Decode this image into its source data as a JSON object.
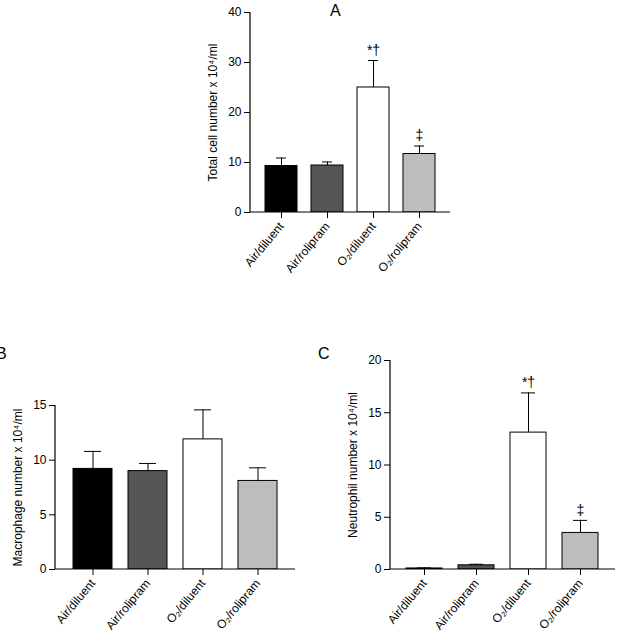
{
  "chart_data": [
    {
      "type": "bar",
      "title": "A",
      "categories": [
        "Air/diluent",
        "Air/rolipram",
        "O₂/diluent",
        "O₂/rolipram"
      ],
      "values": [
        9.3,
        9.4,
        25.0,
        11.7
      ],
      "errors": [
        1.6,
        0.7,
        5.4,
        1.6
      ],
      "annotations": [
        null,
        null,
        "*†",
        "‡"
      ],
      "colors": [
        "#000000",
        "#555555",
        "#ffffff",
        "#bdbdbd"
      ],
      "y_label": "Total cell number x 10⁴/ml",
      "ylim": [
        0,
        40
      ],
      "yticks": [
        0,
        10,
        20,
        30,
        40
      ],
      "grid": false
    },
    {
      "type": "bar",
      "title": "B",
      "categories": [
        "Air/diluent",
        "Air/rolipram",
        "O₂/diluent",
        "O₂/rolipram"
      ],
      "values": [
        9.2,
        9.0,
        11.9,
        8.1
      ],
      "errors": [
        1.6,
        0.7,
        2.7,
        1.2
      ],
      "annotations": [
        null,
        null,
        null,
        null
      ],
      "colors": [
        "#000000",
        "#555555",
        "#ffffff",
        "#bdbdbd"
      ],
      "y_label": "Macrophage number x 10⁴/ml",
      "ylim": [
        0,
        15
      ],
      "yticks": [
        0,
        5,
        10,
        15
      ],
      "grid": false
    },
    {
      "type": "bar",
      "title": "C",
      "categories": [
        "Air/diluent",
        "Air/rolipram",
        "O₂/diluent",
        "O₂/rolipram"
      ],
      "values": [
        0.1,
        0.4,
        13.1,
        3.5
      ],
      "errors": [
        0.05,
        0.1,
        3.8,
        1.2
      ],
      "annotations": [
        null,
        null,
        "*†",
        "‡"
      ],
      "colors": [
        "#000000",
        "#555555",
        "#ffffff",
        "#bdbdbd"
      ],
      "y_label": "Neutrophil number x 10⁴/ml",
      "ylim": [
        0,
        20
      ],
      "yticks": [
        0,
        5,
        10,
        15,
        20
      ],
      "grid": false
    }
  ]
}
